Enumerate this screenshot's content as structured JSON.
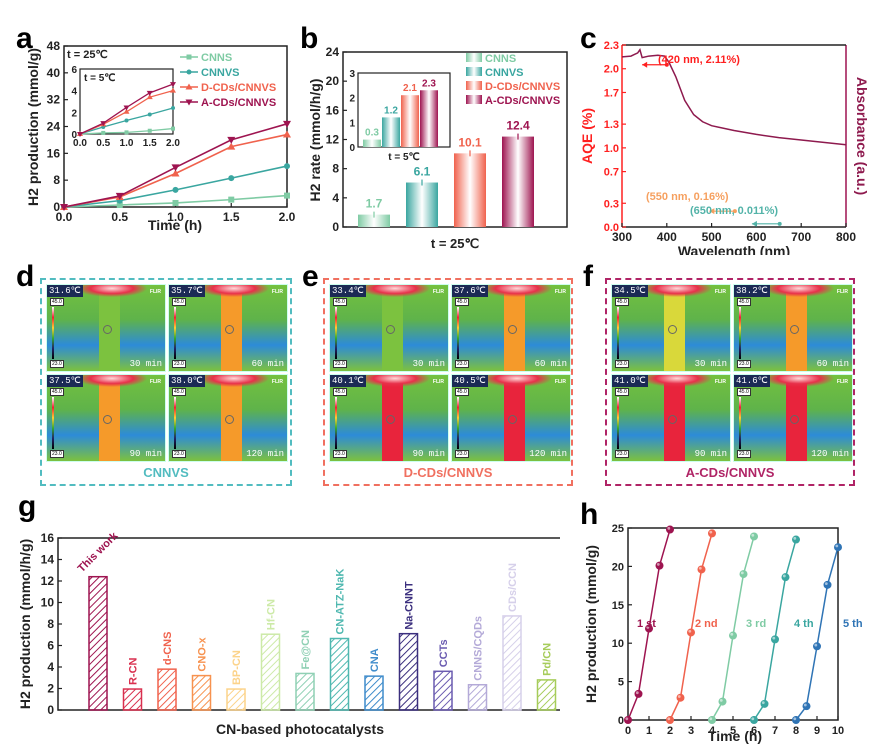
{
  "panels": {
    "a": {
      "letter": "a"
    },
    "b": {
      "letter": "b"
    },
    "c": {
      "letter": "c"
    },
    "d": {
      "letter": "d"
    },
    "e": {
      "letter": "e"
    },
    "f": {
      "letter": "f"
    },
    "g": {
      "letter": "g"
    },
    "h": {
      "letter": "h"
    }
  },
  "colors": {
    "CNNS": "#7fcba4",
    "CNNVS": "#3aa6a0",
    "D-CDs/CNNVS": "#f0624d",
    "A-CDs/CNNVS": "#9e1450",
    "aqe_red": "#ff2020",
    "aqe_orange": "#f6a05f",
    "aqe_teal": "#52b3a8"
  },
  "thermal": [
    {
      "caption": "CNNVS",
      "color": "#52bcc0",
      "scale_max": "45.0",
      "scale_min": "23.0",
      "images": [
        {
          "temp": "31.6℃",
          "time": "30 min",
          "heat": 0.25
        },
        {
          "temp": "35.7℃",
          "time": "60 min",
          "heat": 0.55
        },
        {
          "temp": "37.5℃",
          "time": "90 min",
          "heat": 0.6
        },
        {
          "temp": "38.0℃",
          "time": "120 min",
          "heat": 0.65
        }
      ]
    },
    {
      "caption": "D-CDs/CNNVS",
      "color": "#f07060",
      "scale_max": "45.0",
      "scale_min": "23.0",
      "images": [
        {
          "temp": "33.4℃",
          "time": "30 min",
          "heat": 0.35
        },
        {
          "temp": "37.6℃",
          "time": "60 min",
          "heat": 0.62
        },
        {
          "temp": "40.1℃",
          "time": "90 min",
          "heat": 0.9
        },
        {
          "temp": "40.5℃",
          "time": "120 min",
          "heat": 0.92
        }
      ]
    },
    {
      "caption": "A-CDs/CNNVS",
      "color": "#b02466",
      "scale_max": "45.0",
      "scale_min": "23.0",
      "images": [
        {
          "temp": "34.5℃",
          "time": "30 min",
          "heat": 0.42
        },
        {
          "temp": "38.2℃",
          "time": "60 min",
          "heat": 0.7
        },
        {
          "temp": "41.0℃",
          "time": "90 min",
          "heat": 0.95
        },
        {
          "temp": "41.6℃",
          "time": "120 min",
          "heat": 0.97
        }
      ]
    }
  ],
  "chart_data": [
    {
      "id": "a",
      "type": "line",
      "xlabel": "Time (h)",
      "ylabel": "H2 production (mmol/g)",
      "xlim": [
        0,
        2.0
      ],
      "ylim": [
        0,
        48
      ],
      "xticks": [
        "0.0",
        "0.5",
        "1.0",
        "1.5",
        "2.0"
      ],
      "yticks": [
        "0",
        "8",
        "16",
        "24",
        "32",
        "40",
        "48"
      ],
      "annotation": "t = 25℃",
      "x": [
        0,
        0.5,
        1.0,
        1.5,
        2.0
      ],
      "series": [
        {
          "name": "CNNS",
          "values": [
            0,
            0.6,
            1.2,
            2.2,
            3.4
          ]
        },
        {
          "name": "CNNVS",
          "values": [
            0,
            1.9,
            5.1,
            8.6,
            12.2
          ]
        },
        {
          "name": "D-CDs/CNNVS",
          "values": [
            0,
            3.0,
            10.0,
            18.0,
            21.6
          ]
        },
        {
          "name": "A-CDs/CNNVS",
          "values": [
            0,
            3.3,
            11.8,
            20.0,
            24.8
          ]
        }
      ],
      "legend": "top-right",
      "inset": {
        "annotation": "t = 5℃",
        "xlim": [
          0,
          2.0
        ],
        "ylim": [
          0,
          6
        ],
        "xticks": [
          "0.0",
          "0.5",
          "1.0",
          "1.5",
          "2.0"
        ],
        "yticks": [
          "0",
          "2",
          "4",
          "6"
        ],
        "x": [
          0,
          0.5,
          1.0,
          1.5,
          2.0
        ],
        "series": [
          {
            "name": "CNNS",
            "values": [
              0,
              0.1,
              0.15,
              0.3,
              0.5
            ]
          },
          {
            "name": "CNNVS",
            "values": [
              0,
              0.65,
              1.25,
              1.8,
              2.4
            ]
          },
          {
            "name": "D-CDs/CNNVS",
            "values": [
              0,
              0.9,
              2.05,
              3.4,
              4.0
            ]
          },
          {
            "name": "A-CDs/CNNVS",
            "values": [
              0,
              1.0,
              2.45,
              3.8,
              4.6
            ]
          }
        ]
      }
    },
    {
      "id": "b",
      "type": "bar",
      "ylabel": "H2 rate (mmol/h/g)",
      "xlabel": "t = 25℃",
      "ylim": [
        0,
        24
      ],
      "yticks": [
        "0",
        "4",
        "8",
        "12",
        "16",
        "20",
        "24"
      ],
      "categories": [
        "CNNS",
        "CNNVS",
        "D-CDs/CNNVS",
        "A-CDs/CNNVS"
      ],
      "values": [
        1.7,
        6.1,
        10.1,
        12.4
      ],
      "labels": [
        "1.7",
        "6.1",
        "10.1",
        "12.4"
      ],
      "legend": "top-right",
      "inset": {
        "xlabel": "t = 5℃",
        "ylim": [
          0,
          3
        ],
        "yticks": [
          "0",
          "1",
          "2",
          "3"
        ],
        "values": [
          0.3,
          1.2,
          2.1,
          2.3
        ],
        "labels": [
          "0.3",
          "1.2",
          "2.1",
          "2.3"
        ]
      }
    },
    {
      "id": "c",
      "type": "line",
      "xlabel": "Wavelength (nm)",
      "ylabel": "AQE (%)",
      "ylabel_right": "Absorbance (a.u.)",
      "xlim": [
        300,
        800
      ],
      "ylim": [
        0,
        2.3
      ],
      "xticks": [
        "300",
        "400",
        "500",
        "600",
        "700",
        "800"
      ],
      "yticks": [
        "0.0",
        "0.3",
        "0.7",
        "1.0",
        "1.3",
        "1.7",
        "2.0",
        "2.3"
      ],
      "absorbance": {
        "x": [
          300,
          320,
          335,
          340,
          345,
          360,
          380,
          395,
          405,
          420,
          440,
          460,
          480,
          500,
          550,
          600,
          650,
          700,
          750,
          800
        ],
        "values": [
          2.15,
          2.16,
          2.2,
          2.24,
          2.14,
          2.16,
          2.17,
          2.16,
          2.08,
          1.9,
          1.6,
          1.42,
          1.33,
          1.28,
          1.22,
          1.17,
          1.13,
          1.1,
          1.07,
          1.04
        ]
      },
      "aqe_points": [
        {
          "label": "(420 nm, 2.11%)",
          "x": 420,
          "y": 2.11,
          "color": "#ff2020"
        },
        {
          "label": "(550 nm, 0.16%)",
          "x": 550,
          "y": 0.16,
          "color": "#f6a05f"
        },
        {
          "label": "(650 nm, 0.011%)",
          "x": 650,
          "y": 0.011,
          "color": "#52b3a8"
        }
      ]
    },
    {
      "id": "g",
      "type": "bar",
      "xlabel": "CN-based photocatalysts",
      "ylabel": "H2 production (mmol/h/g)",
      "ylim": [
        0,
        16
      ],
      "yticks": [
        "0",
        "2",
        "4",
        "6",
        "8",
        "10",
        "12",
        "14",
        "16"
      ],
      "categories": [
        "This work",
        "R-CN",
        "d-CNS",
        "CNO-x",
        "BP-CN",
        "Hf-CN",
        "Fe@CN",
        "CN-ATZ-NaK",
        "CNA",
        "Na-CNNT",
        "CCTs",
        "CNNS/CQDs",
        "CDs/CCN",
        "Pd/CN"
      ],
      "values": [
        12.4,
        1.95,
        3.8,
        3.2,
        1.95,
        7.05,
        3.4,
        6.65,
        3.15,
        7.1,
        3.6,
        2.35,
        8.75,
        2.8
      ],
      "colors": [
        "#9e1450",
        "#d9304f",
        "#f0624d",
        "#f7924f",
        "#fcd38a",
        "#cdeaa8",
        "#8fd0b4",
        "#4fb8b0",
        "#3f8ccb",
        "#3b2f7e",
        "#6a5bb0",
        "#b4aad8",
        "#d6d0ea",
        "#a6cc5a"
      ]
    },
    {
      "id": "h",
      "type": "line",
      "xlabel": "Time (h)",
      "ylabel": "H2 production (mmol/g)",
      "xlim": [
        0,
        10
      ],
      "ylim": [
        0,
        25
      ],
      "xticks": [
        "0",
        "1",
        "2",
        "3",
        "4",
        "5",
        "6",
        "7",
        "8",
        "9",
        "10"
      ],
      "yticks": [
        "0",
        "5",
        "10",
        "15",
        "20",
        "25"
      ],
      "series": [
        {
          "name": "1 st",
          "color": "#9e1450",
          "x": [
            0,
            0.5,
            1.0,
            1.5,
            2.0
          ],
          "values": [
            0,
            3.4,
            11.9,
            20.1,
            24.8
          ]
        },
        {
          "name": "2 nd",
          "color": "#f0624d",
          "x": [
            2,
            2.5,
            3.0,
            3.5,
            4.0
          ],
          "values": [
            0,
            2.9,
            11.4,
            19.6,
            24.3
          ]
        },
        {
          "name": "3 rd",
          "color": "#7fcba4",
          "x": [
            4,
            4.5,
            5.0,
            5.5,
            6.0
          ],
          "values": [
            0,
            2.4,
            11.0,
            19.0,
            23.9
          ]
        },
        {
          "name": "4 th",
          "color": "#3aa6a0",
          "x": [
            6,
            6.5,
            7.0,
            7.5,
            8.0
          ],
          "values": [
            0,
            2.1,
            10.5,
            18.6,
            23.5
          ]
        },
        {
          "name": "5 th",
          "color": "#2f74b5",
          "x": [
            8,
            8.5,
            9.0,
            9.5,
            10.0
          ],
          "values": [
            0,
            1.8,
            9.6,
            17.6,
            22.5
          ]
        }
      ]
    }
  ]
}
